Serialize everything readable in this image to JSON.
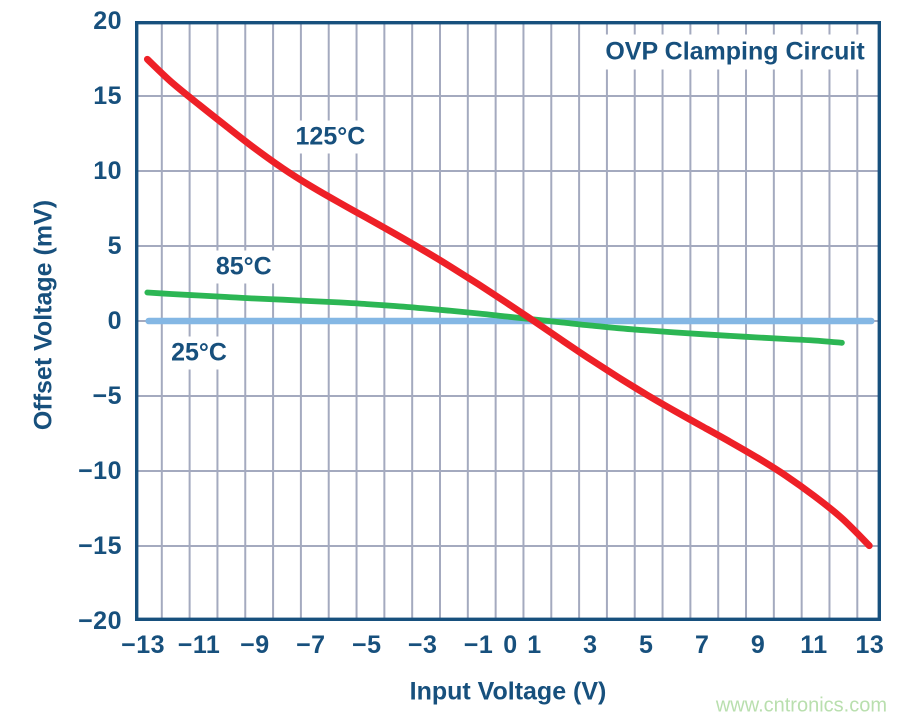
{
  "title": "OVP Clamping Circuit",
  "watermark": {
    "text": "www.cntronics.com",
    "color": "#b9dfae"
  },
  "theme": {
    "text": "#17507d",
    "axis": "#17507d",
    "grid": "#a4aabf",
    "background": "#ffffff"
  },
  "chart_data": {
    "type": "line",
    "title": "OVP Clamping Circuit",
    "xlabel": "Input Voltage (V)",
    "ylabel": "Offset Voltage (mV)",
    "xlim": [
      -13.3,
      13.4
    ],
    "ylim": [
      -20,
      20
    ],
    "grid": {
      "x_step": 1,
      "y_step": 5
    },
    "legend_position": "inline-curve-labels",
    "x_ticks": [
      {
        "value": -13,
        "label": "−13"
      },
      {
        "value": -11,
        "label": "−11"
      },
      {
        "value": -9,
        "label": "−9"
      },
      {
        "value": -7,
        "label": "−7"
      },
      {
        "value": -5,
        "label": "−5"
      },
      {
        "value": -3,
        "label": "−3"
      },
      {
        "value": -1,
        "label": "−1"
      },
      {
        "value": 0,
        "label": "0",
        "dx": 4
      },
      {
        "value": 1,
        "label": "1"
      },
      {
        "value": 3,
        "label": "3"
      },
      {
        "value": 5,
        "label": "5"
      },
      {
        "value": 7,
        "label": "7"
      },
      {
        "value": 9,
        "label": "9"
      },
      {
        "value": 11,
        "label": "11"
      },
      {
        "value": 13,
        "label": "13"
      }
    ],
    "y_ticks": [
      {
        "value": 20,
        "label": "20"
      },
      {
        "value": 15,
        "label": "15"
      },
      {
        "value": 10,
        "label": "10"
      },
      {
        "value": 5,
        "label": "5"
      },
      {
        "value": 0,
        "label": "0"
      },
      {
        "value": -5,
        "label": "−5"
      },
      {
        "value": -10,
        "label": "−10"
      },
      {
        "value": -15,
        "label": "−15"
      },
      {
        "value": -20,
        "label": "−20"
      }
    ],
    "series": [
      {
        "name": "125°C",
        "color": "#ee2027",
        "width": 6.8,
        "label_anchor": {
          "x": -6.3,
          "y": 12.25
        },
        "points": [
          [
            -12.85,
            17.45
          ],
          [
            -12,
            15.95
          ],
          [
            -11,
            14.42
          ],
          [
            -10,
            12.95
          ],
          [
            -9,
            11.5
          ],
          [
            -8,
            10.17
          ],
          [
            -7,
            8.99
          ],
          [
            -6,
            7.91
          ],
          [
            -5,
            6.87
          ],
          [
            -4,
            5.83
          ],
          [
            -3,
            4.75
          ],
          [
            -2,
            3.62
          ],
          [
            -1,
            2.44
          ],
          [
            0,
            1.22
          ],
          [
            1,
            -0.03
          ],
          [
            2,
            -1.3
          ],
          [
            3,
            -2.55
          ],
          [
            4,
            -3.75
          ],
          [
            5,
            -4.9
          ],
          [
            6,
            -5.98
          ],
          [
            7,
            -7.02
          ],
          [
            8,
            -8.06
          ],
          [
            9,
            -9.14
          ],
          [
            10,
            -10.32
          ],
          [
            11,
            -11.65
          ],
          [
            12,
            -13.15
          ],
          [
            12.98,
            -14.98
          ]
        ]
      },
      {
        "name": "85°C",
        "color": "#2cb654",
        "width": 5.8,
        "label_anchor": {
          "x": -9.4,
          "y": 3.6
        },
        "points": [
          [
            -12.85,
            1.9
          ],
          [
            -12,
            1.8
          ],
          [
            -11,
            1.7
          ],
          [
            -10,
            1.6
          ],
          [
            -9,
            1.5
          ],
          [
            -8,
            1.42
          ],
          [
            -7,
            1.33
          ],
          [
            -6,
            1.24
          ],
          [
            -5,
            1.13
          ],
          [
            -4,
            1.0
          ],
          [
            -3,
            0.85
          ],
          [
            -2,
            0.68
          ],
          [
            -1,
            0.5
          ],
          [
            0,
            0.3
          ],
          [
            1,
            0.1
          ],
          [
            2,
            -0.1
          ],
          [
            3,
            -0.3
          ],
          [
            4,
            -0.48
          ],
          [
            5,
            -0.63
          ],
          [
            6,
            -0.76
          ],
          [
            7,
            -0.88
          ],
          [
            8,
            -0.99
          ],
          [
            9,
            -1.1
          ],
          [
            10,
            -1.2
          ],
          [
            11,
            -1.3
          ],
          [
            12,
            -1.45
          ]
        ]
      },
      {
        "name": "25°C",
        "color": "#84b7e4",
        "width": 6.6,
        "label_anchor": {
          "x": -11.0,
          "y": -2.1
        },
        "points": [
          [
            -12.8,
            0
          ],
          [
            13.05,
            0
          ]
        ]
      }
    ]
  }
}
